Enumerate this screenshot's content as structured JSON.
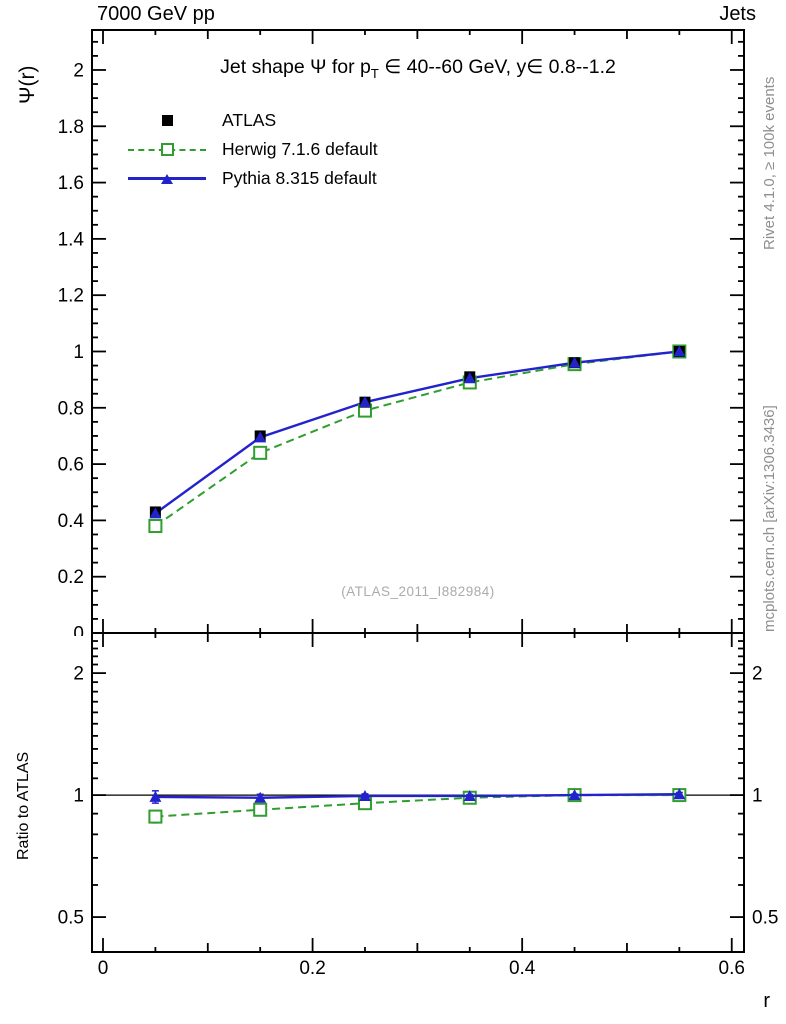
{
  "header": {
    "left": "7000 GeV pp",
    "right": "Jets"
  },
  "title": {
    "pre": "Jet shape Ψ for p",
    "sub": "T",
    "post": " ∈ 40--60 GeV, y∈ 0.8--1.2"
  },
  "legend": {
    "items": [
      {
        "label": "ATLAS",
        "marker": "black-filled-square"
      },
      {
        "label": "Herwig 7.1.6 default",
        "marker": "green-open-square-dashed-line"
      },
      {
        "label": "Pythia 8.315 default",
        "marker": "blue-filled-triangle-solid-line"
      }
    ]
  },
  "axes": {
    "main_y_label": "Ψ(r)",
    "ratio_y_label": "Ratio to ATLAS",
    "x_label": "r"
  },
  "watermark": "(ATLAS_2011_I882984)",
  "side_notes": {
    "top_right": "Rivet 4.1.0, ≥ 100k events",
    "bottom_right": "mcplots.cern.ch [arXiv:1306.3436]"
  },
  "colors": {
    "herwig_green": "#2f9e2f",
    "pythia_blue": "#2323cc",
    "axis_black": "#000000",
    "gray_text": "#8f8f8f",
    "watermark_gray": "#ababab"
  },
  "chart_data": {
    "type": "line",
    "title": "Jet shape Ψ for p_T ∈ 40--60 GeV, y ∈ 0.8--1.2",
    "xlabel": "r",
    "ylabel": "Ψ(r)",
    "ratio_ylabel": "Ratio to ATLAS",
    "x": [
      0.05,
      0.15,
      0.25,
      0.35,
      0.45,
      0.55
    ],
    "series": [
      {
        "name": "ATLAS",
        "role": "data",
        "color": "#000000",
        "marker": "filled-square",
        "line": "none",
        "values": [
          0.43,
          0.7,
          0.82,
          0.91,
          0.96,
          1.0
        ]
      },
      {
        "name": "Herwig 7.1.6 default",
        "role": "mc",
        "color": "#2f9e2f",
        "marker": "open-square",
        "line": "dashed",
        "values": [
          0.38,
          0.64,
          0.79,
          0.89,
          0.955,
          1.0
        ],
        "ratio_to_atlas": [
          0.885,
          0.92,
          0.955,
          0.985,
          1.0,
          1.0
        ],
        "ratio_err": [
          0.035,
          0.025,
          0.015,
          0.01,
          0.008,
          0.012
        ]
      },
      {
        "name": "Pythia 8.315 default",
        "role": "mc",
        "color": "#2323cc",
        "marker": "filled-triangle",
        "line": "solid",
        "values": [
          0.425,
          0.695,
          0.82,
          0.905,
          0.96,
          1.0
        ],
        "ratio_to_atlas": [
          0.99,
          0.985,
          0.995,
          0.995,
          1.0,
          1.005
        ],
        "ratio_err": [
          0.035,
          0.02,
          0.012,
          0.008,
          0.006,
          0.01
        ]
      }
    ],
    "x_axis": {
      "xlim": [
        -0.0105,
        0.6117
      ],
      "major_ticks": [
        0,
        0.2,
        0.4,
        0.6
      ],
      "tick_labels": [
        "0",
        "0.2",
        "0.4",
        "0.6"
      ],
      "minor_step": 0.05
    },
    "main_axis": {
      "ylim": [
        0,
        2.142
      ],
      "major_ticks": [
        0,
        0.2,
        0.4,
        0.6,
        0.8,
        1,
        1.2,
        1.4,
        1.6,
        1.8,
        2
      ],
      "tick_labels": [
        "0",
        "0.2",
        "0.4",
        "0.6",
        "0.8",
        "1",
        "1.2",
        "1.4",
        "1.6",
        "1.8",
        "2"
      ],
      "minor_step": 0.05
    },
    "ratio_axis": {
      "scale": "log",
      "ylim": [
        0.41,
        2.512
      ],
      "major_ticks": [
        0.5,
        1,
        2
      ],
      "tick_labels": [
        "0.5",
        "1",
        "2"
      ],
      "minor_ticks": [
        0.6,
        0.7,
        0.8,
        0.9,
        1.1,
        1.2,
        1.3,
        1.4,
        1.5,
        1.6,
        1.7,
        1.8,
        1.9,
        2.1,
        2.2,
        2.3,
        2.4
      ],
      "reference_line": 1
    },
    "legend_position": "top-left",
    "grid": false
  }
}
